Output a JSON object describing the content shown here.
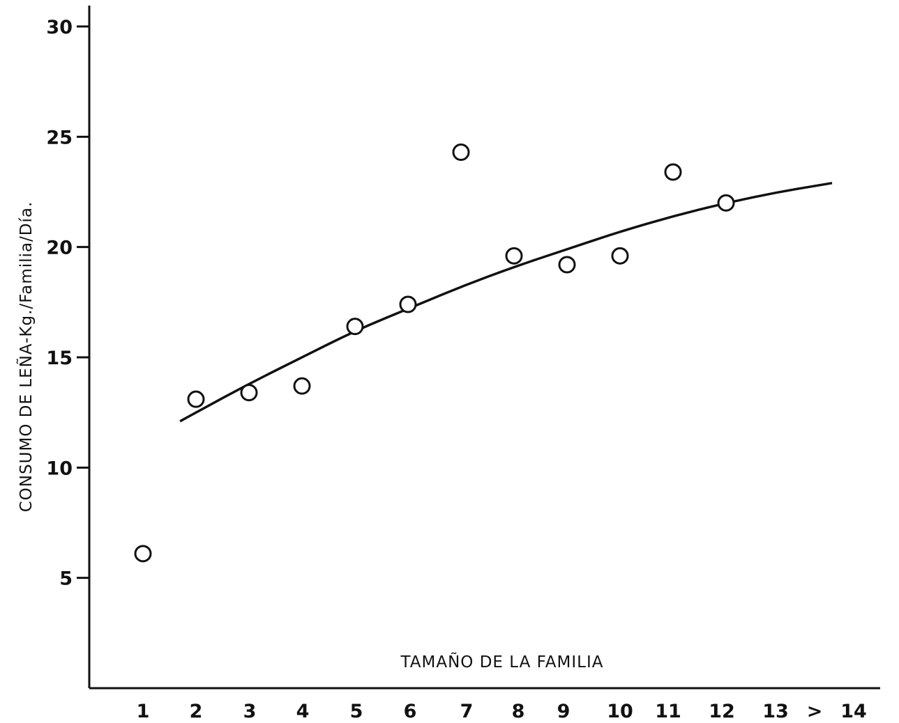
{
  "chart_data": {
    "type": "scatter",
    "title": "",
    "xlabel": "TAMAÑO DE LA FAMILIA",
    "ylabel": "CONSUMO DE LEÑA-Kg./Familia/Día.",
    "x_tick_labels": [
      "1",
      "2",
      "3",
      "4",
      "5",
      "6",
      "7",
      "8",
      "9",
      "10",
      "11",
      "12",
      "13",
      ">",
      "14"
    ],
    "y_ticks": [
      "5",
      "10",
      "15",
      "20",
      "25",
      "30"
    ],
    "ylim": [
      0,
      30
    ],
    "grid": false,
    "series": [
      {
        "type": "scatter",
        "x": [
          1,
          2,
          3,
          4,
          5,
          6,
          7,
          8,
          9,
          10,
          11,
          12
        ],
        "y": [
          6.1,
          13.1,
          13.4,
          13.7,
          16.4,
          17.4,
          24.3,
          19.6,
          19.2,
          19.6,
          23.4,
          22.0
        ]
      },
      {
        "type": "line",
        "x": [
          1.7,
          2,
          3,
          4,
          5,
          6,
          7,
          8,
          9,
          10,
          11,
          12,
          13,
          14
        ],
        "y": [
          12.1,
          12.5,
          13.8,
          15.0,
          16.2,
          17.2,
          18.2,
          19.1,
          19.9,
          20.7,
          21.4,
          22.0,
          22.5,
          22.9
        ]
      }
    ]
  }
}
